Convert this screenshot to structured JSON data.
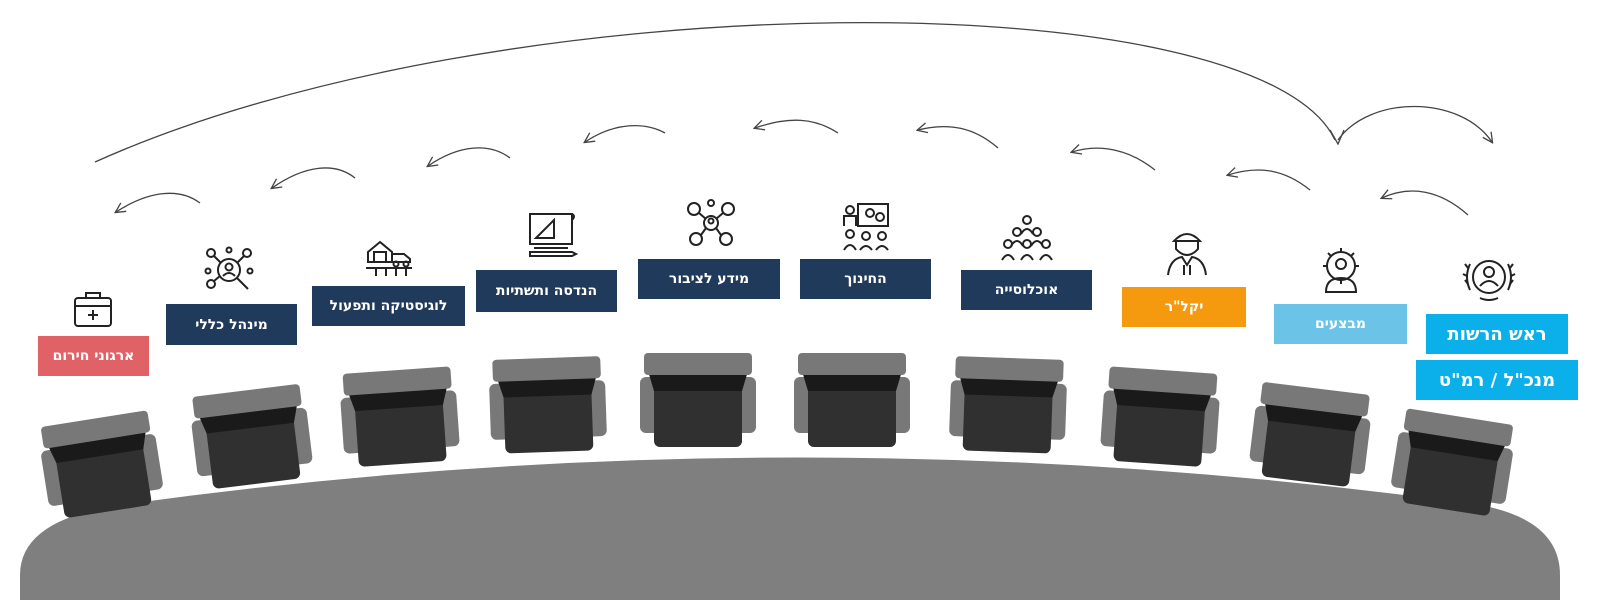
{
  "colors": {
    "navy": "#203a5c",
    "cyan": "#0bb0ea",
    "light_blue": "#6bc3e8",
    "orange": "#f59a0e",
    "red": "#e06266",
    "table": "#7f7f7f",
    "chair_dark": "#303030",
    "chair_light": "#787878",
    "chair_back": "#1a1a1a"
  },
  "seats": [
    {
      "id": "emergency",
      "label": "ארגוני חירום",
      "color": "red",
      "icon": "first-aid-kit-icon"
    },
    {
      "id": "general-admin",
      "label": "מינהל כללי",
      "color": "navy",
      "icon": "people-search-network-icon"
    },
    {
      "id": "logistics",
      "label": "לוגיסטיקה ותפעול",
      "color": "navy",
      "icon": "warehouse-truck-icon"
    },
    {
      "id": "engineering",
      "label": "הנדסה ותשתיות",
      "color": "navy",
      "icon": "blueprint-ruler-icon"
    },
    {
      "id": "public-info",
      "label": "מידע לציבור",
      "color": "navy",
      "icon": "network-people-icon"
    },
    {
      "id": "education",
      "label": "החינוך",
      "color": "navy",
      "icon": "classroom-icon"
    },
    {
      "id": "population",
      "label": "אוכלוסייה",
      "color": "navy",
      "icon": "population-group-icon"
    },
    {
      "id": "liaison",
      "label": "יקל\"ר",
      "color": "orange",
      "icon": "soldier-icon"
    },
    {
      "id": "operations",
      "label": "מבצעים",
      "color": "light_blue",
      "icon": "gear-person-icon"
    },
    {
      "id": "head",
      "label": "ראש הרשות",
      "label2": "מנכ\"ל / רמ\"ט",
      "color": "cyan",
      "icon": "laurel-person-icon"
    }
  ]
}
